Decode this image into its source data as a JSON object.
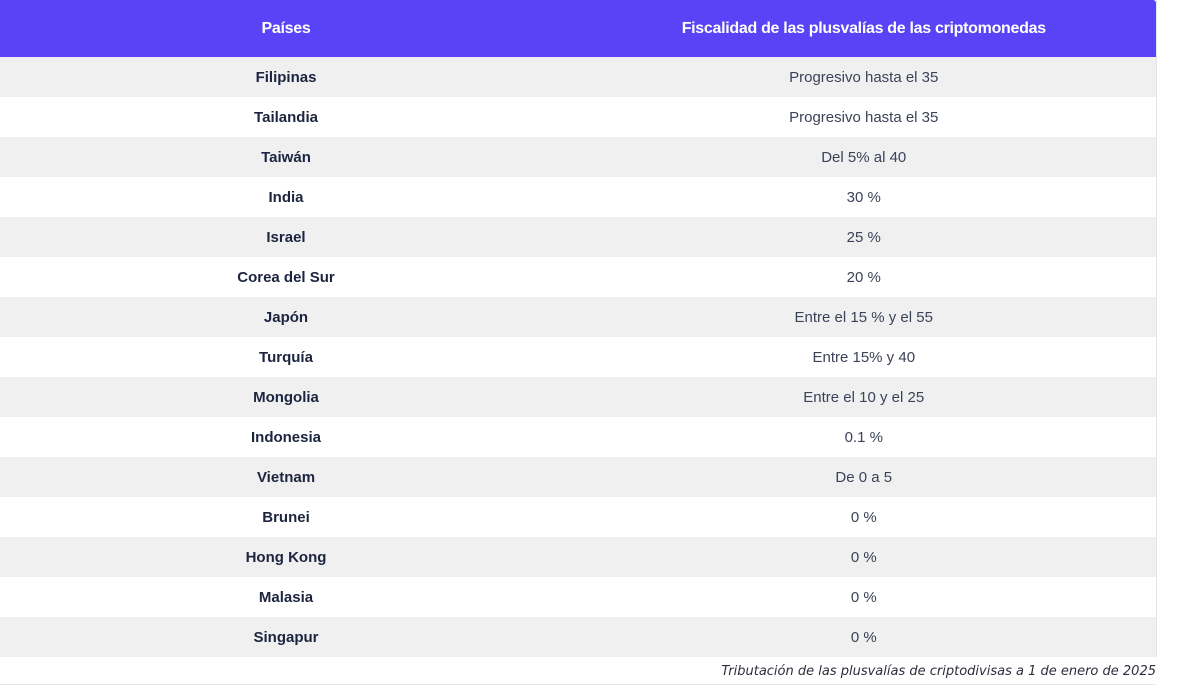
{
  "table": {
    "headers": {
      "country": "Países",
      "tax": "Fiscalidad de las plusvalías de las criptomonedas"
    },
    "rows": [
      {
        "country": "Filipinas",
        "tax": "Progresivo hasta el 35"
      },
      {
        "country": "Tailandia",
        "tax": "Progresivo hasta el 35"
      },
      {
        "country": "Taiwán",
        "tax": "Del 5% al 40"
      },
      {
        "country": "India",
        "tax": "30 %"
      },
      {
        "country": "Israel",
        "tax": "25 %"
      },
      {
        "country": "Corea del Sur",
        "tax": "20 %"
      },
      {
        "country": "Japón",
        "tax": "Entre el 15 % y el 55"
      },
      {
        "country": "Turquía",
        "tax": "Entre 15% y 40"
      },
      {
        "country": "Mongolia",
        "tax": "Entre el 10 y el 25"
      },
      {
        "country": "Indonesia",
        "tax": "0.1 %"
      },
      {
        "country": "Vietnam",
        "tax": "De 0 a 5"
      },
      {
        "country": "Brunei",
        "tax": "0 %"
      },
      {
        "country": "Hong Kong",
        "tax": "0 %"
      },
      {
        "country": "Malasia",
        "tax": "0 %"
      },
      {
        "country": "Singapur",
        "tax": "0 %"
      }
    ]
  },
  "caption": "Tributación de las plusvalías de criptodivisas a 1 de enero de 2025",
  "colors": {
    "header_bg": "#5843f6",
    "header_text": "#ffffff",
    "row_odd": "#f0f0f1",
    "row_even": "#ffffff",
    "text": "#1c2440"
  }
}
